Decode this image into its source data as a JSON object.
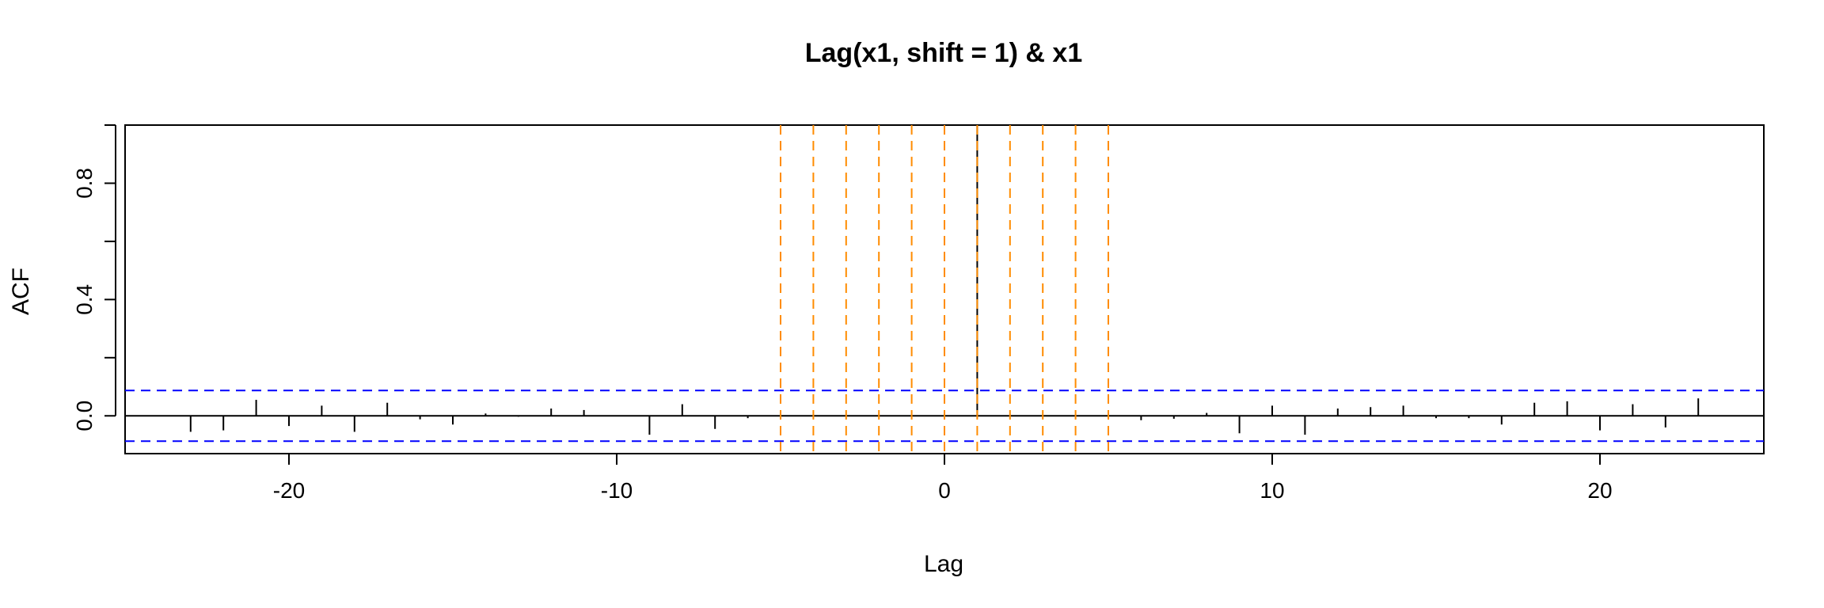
{
  "chart_data": {
    "type": "acf",
    "title": "Lag(x1, shift = 1) & x1",
    "xlabel": "Lag",
    "ylabel": "ACF",
    "xlim": [
      -25,
      25
    ],
    "ylim": [
      -0.13,
      1.0
    ],
    "x_ticks": [
      -20,
      -10,
      0,
      10,
      20
    ],
    "y_ticks": [
      0.0,
      0.4,
      0.8
    ],
    "y_ticks_minor": [
      0.2,
      0.6,
      1.0
    ],
    "confidence_bound": 0.087,
    "confidence_color": "#0000FF",
    "highlight_lags": [
      -5,
      -4,
      -3,
      -2,
      -1,
      0,
      1,
      2,
      3,
      4,
      5
    ],
    "highlight_color": "#FF8C00",
    "lags": [
      -23,
      -22,
      -21,
      -20,
      -19,
      -18,
      -17,
      -16,
      -15,
      -14,
      -13,
      -12,
      -11,
      -10,
      -9,
      -8,
      -7,
      -6,
      -5,
      -4,
      -3,
      -2,
      -1,
      0,
      1,
      2,
      3,
      4,
      5,
      6,
      7,
      8,
      9,
      10,
      11,
      12,
      13,
      14,
      15,
      16,
      17,
      18,
      19,
      20,
      21,
      22,
      23
    ],
    "acf": [
      -0.055,
      -0.05,
      0.055,
      -0.035,
      0.035,
      -0.055,
      0.045,
      -0.012,
      -0.03,
      0.008,
      -0.003,
      0.025,
      0.02,
      0.0,
      -0.065,
      0.04,
      -0.045,
      -0.008,
      0.0,
      0.0,
      0.0,
      0.0,
      0.0,
      0.0,
      1.0,
      0.0,
      0.0,
      0.0,
      0.0,
      -0.015,
      -0.01,
      0.01,
      -0.06,
      0.035,
      -0.065,
      0.025,
      0.03,
      0.035,
      -0.008,
      -0.008,
      -0.03,
      0.045,
      0.05,
      -0.05,
      0.04,
      -0.04,
      0.06
    ],
    "grid": false,
    "legend": "none"
  }
}
